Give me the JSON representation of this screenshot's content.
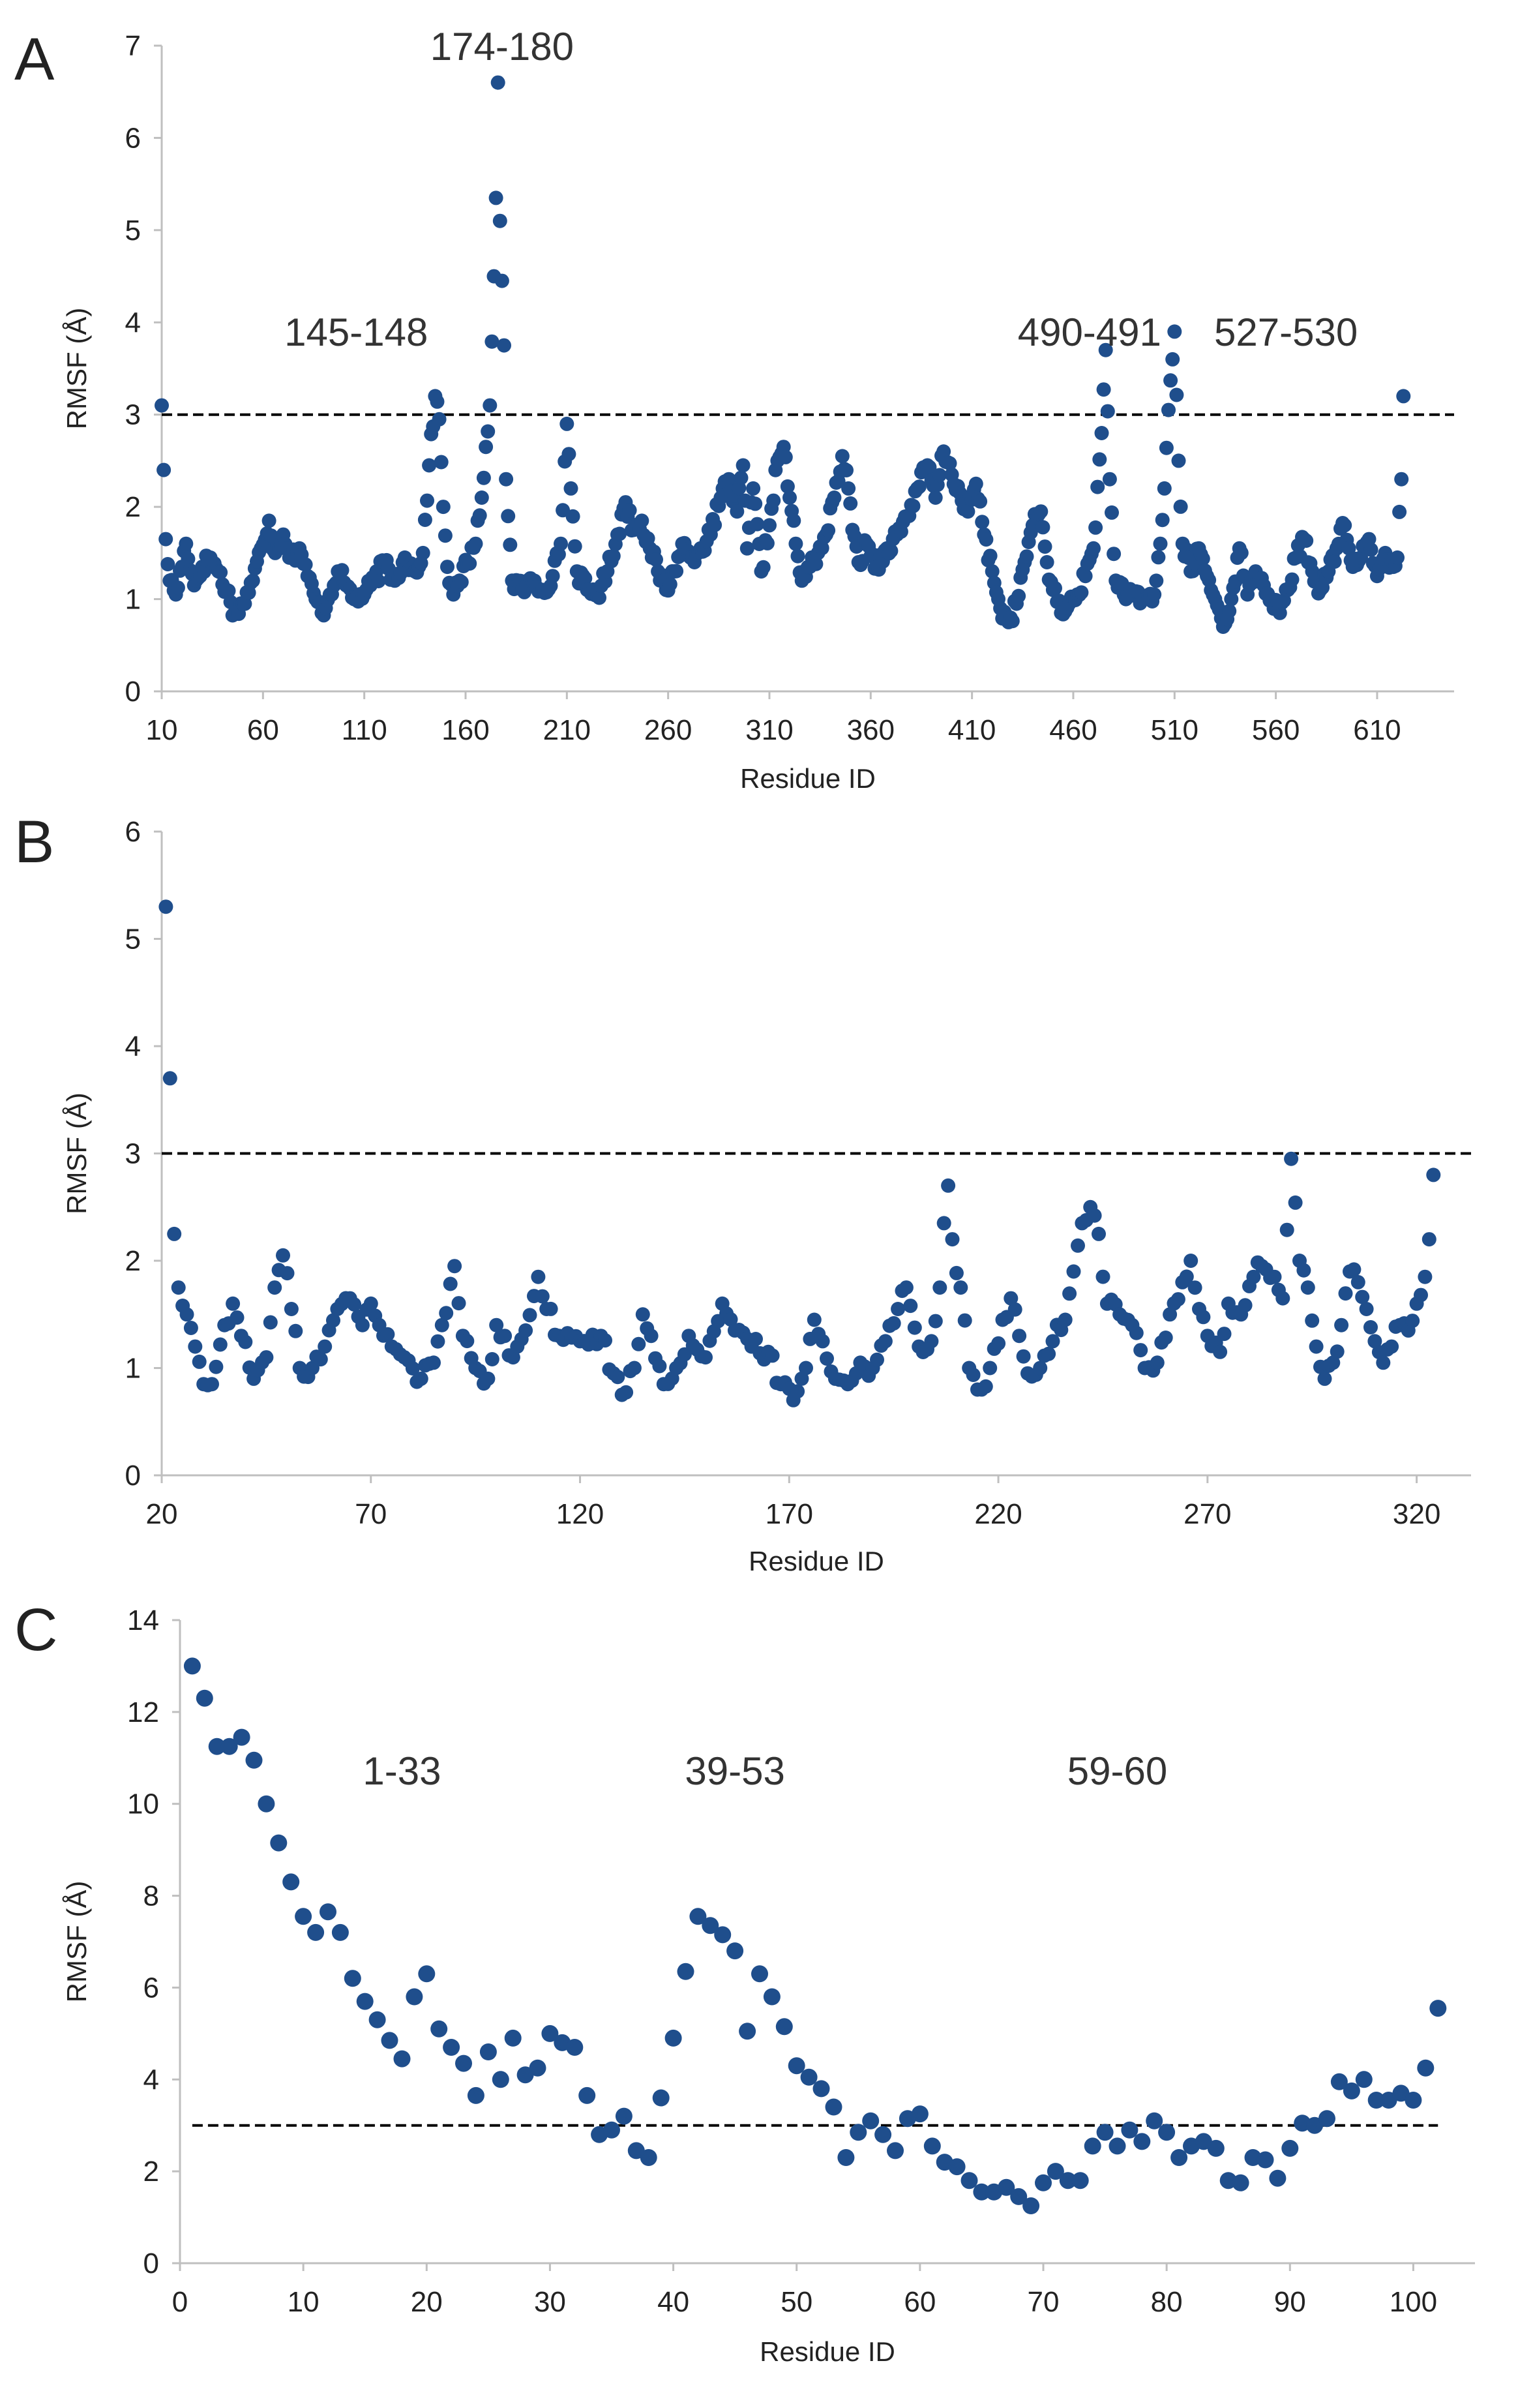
{
  "colors": {
    "point": "#1f4e8c",
    "threshold": "#000000",
    "axis": "#bfbfbf",
    "text": "#222222"
  },
  "chart_data": [
    {
      "type": "scatter",
      "panel_label": "A",
      "xlabel": "Residue ID",
      "ylabel": "RMSF (Å)",
      "xlim": [
        10,
        648
      ],
      "ylim": [
        0,
        7
      ],
      "xticks": [
        10,
        60,
        110,
        160,
        210,
        260,
        310,
        360,
        410,
        460,
        510,
        560,
        610
      ],
      "yticks": [
        0,
        1,
        2,
        3,
        4,
        5,
        6,
        7
      ],
      "threshold": 3,
      "annotations": [
        {
          "text": "174-180",
          "x": 178,
          "y": 7.0
        },
        {
          "text": "145-148",
          "x": 106,
          "y": 3.9
        },
        {
          "text": "490-491",
          "x": 468,
          "y": 3.9
        },
        {
          "text": "527-530",
          "x": 565,
          "y": 3.9
        }
      ],
      "anchors": [
        [
          10,
          3.1
        ],
        [
          11,
          2.4
        ],
        [
          12,
          1.65
        ],
        [
          14,
          1.2
        ],
        [
          17,
          1.05
        ],
        [
          22,
          1.6
        ],
        [
          26,
          1.15
        ],
        [
          30,
          1.35
        ],
        [
          34,
          1.45
        ],
        [
          38,
          1.3
        ],
        [
          42,
          1.1
        ],
        [
          46,
          0.85
        ],
        [
          50,
          0.95
        ],
        [
          55,
          1.2
        ],
        [
          59,
          1.55
        ],
        [
          63,
          1.85
        ],
        [
          66,
          1.5
        ],
        [
          70,
          1.7
        ],
        [
          74,
          1.45
        ],
        [
          78,
          1.55
        ],
        [
          82,
          1.25
        ],
        [
          86,
          1.0
        ],
        [
          89,
          0.85
        ],
        [
          93,
          1.05
        ],
        [
          97,
          1.3
        ],
        [
          101,
          1.15
        ],
        [
          105,
          1.0
        ],
        [
          110,
          1.05
        ],
        [
          115,
          1.2
        ],
        [
          120,
          1.4
        ],
        [
          125,
          1.2
        ],
        [
          130,
          1.45
        ],
        [
          135,
          1.3
        ],
        [
          139,
          1.5
        ],
        [
          142,
          2.45
        ],
        [
          145,
          3.2
        ],
        [
          147,
          2.95
        ],
        [
          149,
          2.0
        ],
        [
          151,
          1.35
        ],
        [
          154,
          1.05
        ],
        [
          157,
          1.2
        ],
        [
          161,
          1.4
        ],
        [
          165,
          1.6
        ],
        [
          168,
          2.1
        ],
        [
          170,
          2.65
        ],
        [
          172,
          3.1
        ],
        [
          174,
          4.5
        ],
        [
          175,
          5.35
        ],
        [
          176,
          6.6
        ],
        [
          177,
          5.1
        ],
        [
          178,
          4.45
        ],
        [
          179,
          3.75
        ],
        [
          180,
          2.3
        ],
        [
          181,
          1.9
        ],
        [
          183,
          1.2
        ],
        [
          188,
          1.1
        ],
        [
          193,
          1.2
        ],
        [
          198,
          1.1
        ],
        [
          203,
          1.25
        ],
        [
          207,
          1.6
        ],
        [
          210,
          2.9
        ],
        [
          212,
          2.2
        ],
        [
          215,
          1.3
        ],
        [
          220,
          1.1
        ],
        [
          225,
          1.05
        ],
        [
          230,
          1.3
        ],
        [
          235,
          1.7
        ],
        [
          239,
          2.05
        ],
        [
          243,
          1.75
        ],
        [
          247,
          1.85
        ],
        [
          251,
          1.55
        ],
        [
          255,
          1.3
        ],
        [
          259,
          1.1
        ],
        [
          263,
          1.3
        ],
        [
          267,
          1.6
        ],
        [
          271,
          1.45
        ],
        [
          276,
          1.55
        ],
        [
          281,
          1.7
        ],
        [
          286,
          2.1
        ],
        [
          290,
          2.3
        ],
        [
          294,
          1.95
        ],
        [
          297,
          2.45
        ],
        [
          299,
          1.55
        ],
        [
          302,
          2.2
        ],
        [
          306,
          1.3
        ],
        [
          310,
          1.8
        ],
        [
          314,
          2.5
        ],
        [
          317,
          2.65
        ],
        [
          320,
          2.1
        ],
        [
          323,
          1.6
        ],
        [
          326,
          1.2
        ],
        [
          330,
          1.35
        ],
        [
          334,
          1.5
        ],
        [
          338,
          1.7
        ],
        [
          342,
          2.1
        ],
        [
          346,
          2.55
        ],
        [
          349,
          2.2
        ],
        [
          351,
          1.75
        ],
        [
          354,
          1.4
        ],
        [
          358,
          1.6
        ],
        [
          363,
          1.35
        ],
        [
          368,
          1.55
        ],
        [
          373,
          1.7
        ],
        [
          378,
          1.9
        ],
        [
          383,
          2.2
        ],
        [
          388,
          2.45
        ],
        [
          392,
          2.1
        ],
        [
          396,
          2.6
        ],
        [
          400,
          2.35
        ],
        [
          404,
          2.15
        ],
        [
          408,
          1.95
        ],
        [
          412,
          2.25
        ],
        [
          416,
          1.7
        ],
        [
          420,
          1.3
        ],
        [
          424,
          0.9
        ],
        [
          428,
          0.75
        ],
        [
          432,
          0.95
        ],
        [
          436,
          1.4
        ],
        [
          440,
          1.8
        ],
        [
          444,
          1.95
        ],
        [
          447,
          1.4
        ],
        [
          450,
          1.1
        ],
        [
          454,
          0.85
        ],
        [
          458,
          0.95
        ],
        [
          462,
          1.05
        ],
        [
          466,
          1.25
        ],
        [
          470,
          1.55
        ],
        [
          474,
          2.8
        ],
        [
          476,
          3.7
        ],
        [
          478,
          2.3
        ],
        [
          481,
          1.2
        ],
        [
          486,
          1.0
        ],
        [
          490,
          1.05
        ],
        [
          495,
          1.0
        ],
        [
          500,
          1.05
        ],
        [
          503,
          1.6
        ],
        [
          505,
          2.2
        ],
        [
          507,
          3.05
        ],
        [
          509,
          3.6
        ],
        [
          510,
          3.9
        ],
        [
          512,
          2.5
        ],
        [
          514,
          1.6
        ],
        [
          518,
          1.3
        ],
        [
          522,
          1.55
        ],
        [
          526,
          1.25
        ],
        [
          530,
          1.0
        ],
        [
          534,
          0.7
        ],
        [
          538,
          1.0
        ],
        [
          542,
          1.55
        ],
        [
          546,
          1.05
        ],
        [
          550,
          1.3
        ],
        [
          554,
          1.15
        ],
        [
          558,
          1.0
        ],
        [
          562,
          0.85
        ],
        [
          566,
          1.1
        ],
        [
          570,
          1.45
        ],
        [
          574,
          1.65
        ],
        [
          578,
          1.3
        ],
        [
          582,
          1.1
        ],
        [
          586,
          1.3
        ],
        [
          590,
          1.55
        ],
        [
          594,
          1.8
        ],
        [
          598,
          1.35
        ],
        [
          602,
          1.45
        ],
        [
          606,
          1.65
        ],
        [
          610,
          1.25
        ],
        [
          614,
          1.5
        ],
        [
          618,
          1.35
        ],
        [
          620,
          1.45
        ],
        [
          622,
          2.3
        ],
        [
          623,
          3.2
        ]
      ]
    },
    {
      "type": "scatter",
      "panel_label": "B",
      "xlabel": "Residue ID",
      "ylabel": "RMSF (Å)",
      "xlim": [
        20,
        333
      ],
      "ylim": [
        0,
        6
      ],
      "xticks": [
        20,
        70,
        120,
        170,
        220,
        270,
        320
      ],
      "yticks": [
        0,
        1,
        2,
        3,
        4,
        5,
        6
      ],
      "threshold": 3,
      "anchors": [
        [
          21,
          5.3
        ],
        [
          22,
          3.7
        ],
        [
          23,
          2.25
        ],
        [
          24,
          1.75
        ],
        [
          26,
          1.5
        ],
        [
          28,
          1.2
        ],
        [
          30,
          0.85
        ],
        [
          32,
          0.85
        ],
        [
          35,
          1.4
        ],
        [
          37,
          1.6
        ],
        [
          39,
          1.3
        ],
        [
          42,
          0.9
        ],
        [
          45,
          1.1
        ],
        [
          47,
          1.75
        ],
        [
          49,
          2.05
        ],
        [
          51,
          1.55
        ],
        [
          53,
          1.0
        ],
        [
          56,
          1.0
        ],
        [
          59,
          1.2
        ],
        [
          62,
          1.55
        ],
        [
          65,
          1.65
        ],
        [
          68,
          1.4
        ],
        [
          70,
          1.6
        ],
        [
          72,
          1.4
        ],
        [
          75,
          1.2
        ],
        [
          78,
          1.1
        ],
        [
          82,
          0.9
        ],
        [
          85,
          1.05
        ],
        [
          87,
          1.4
        ],
        [
          90,
          1.95
        ],
        [
          92,
          1.3
        ],
        [
          95,
          1.0
        ],
        [
          98,
          0.9
        ],
        [
          100,
          1.4
        ],
        [
          102,
          1.3
        ],
        [
          104,
          1.1
        ],
        [
          107,
          1.35
        ],
        [
          110,
          1.85
        ],
        [
          112,
          1.55
        ],
        [
          115,
          1.3
        ],
        [
          120,
          1.25
        ],
        [
          125,
          1.3
        ],
        [
          128,
          0.95
        ],
        [
          130,
          0.75
        ],
        [
          133,
          1.0
        ],
        [
          135,
          1.5
        ],
        [
          137,
          1.3
        ],
        [
          140,
          0.85
        ],
        [
          143,
          1.0
        ],
        [
          146,
          1.3
        ],
        [
          150,
          1.1
        ],
        [
          154,
          1.6
        ],
        [
          157,
          1.35
        ],
        [
          161,
          1.2
        ],
        [
          165,
          1.15
        ],
        [
          168,
          0.85
        ],
        [
          171,
          0.7
        ],
        [
          174,
          1.0
        ],
        [
          176,
          1.45
        ],
        [
          178,
          1.25
        ],
        [
          181,
          0.9
        ],
        [
          184,
          0.85
        ],
        [
          187,
          1.05
        ],
        [
          190,
          1.0
        ],
        [
          193,
          1.25
        ],
        [
          196,
          1.55
        ],
        [
          198,
          1.75
        ],
        [
          201,
          1.2
        ],
        [
          204,
          1.25
        ],
        [
          206,
          1.75
        ],
        [
          207,
          2.35
        ],
        [
          208,
          2.7
        ],
        [
          209,
          2.2
        ],
        [
          211,
          1.75
        ],
        [
          213,
          1.0
        ],
        [
          216,
          0.8
        ],
        [
          218,
          1.0
        ],
        [
          221,
          1.45
        ],
        [
          223,
          1.65
        ],
        [
          225,
          1.3
        ],
        [
          227,
          0.95
        ],
        [
          230,
          1.0
        ],
        [
          233,
          1.25
        ],
        [
          236,
          1.45
        ],
        [
          238,
          1.9
        ],
        [
          240,
          2.35
        ],
        [
          242,
          2.5
        ],
        [
          244,
          2.25
        ],
        [
          246,
          1.6
        ],
        [
          249,
          1.5
        ],
        [
          252,
          1.4
        ],
        [
          255,
          1.0
        ],
        [
          258,
          1.05
        ],
        [
          261,
          1.5
        ],
        [
          264,
          1.8
        ],
        [
          266,
          2.0
        ],
        [
          268,
          1.55
        ],
        [
          270,
          1.3
        ],
        [
          273,
          1.15
        ],
        [
          275,
          1.6
        ],
        [
          278,
          1.5
        ],
        [
          281,
          1.85
        ],
        [
          283,
          1.95
        ],
        [
          286,
          1.85
        ],
        [
          288,
          1.65
        ],
        [
          290,
          2.95
        ],
        [
          292,
          2.0
        ],
        [
          294,
          1.75
        ],
        [
          296,
          1.2
        ],
        [
          298,
          0.9
        ],
        [
          300,
          1.05
        ],
        [
          302,
          1.4
        ],
        [
          304,
          1.9
        ],
        [
          306,
          1.8
        ],
        [
          308,
          1.55
        ],
        [
          310,
          1.25
        ],
        [
          312,
          1.05
        ],
        [
          314,
          1.2
        ],
        [
          316,
          1.4
        ],
        [
          318,
          1.35
        ],
        [
          320,
          1.6
        ],
        [
          322,
          1.85
        ],
        [
          323,
          2.2
        ],
        [
          324,
          2.8
        ]
      ]
    },
    {
      "type": "scatter",
      "panel_label": "C",
      "xlabel": "Residue ID",
      "ylabel": "RMSF (Å)",
      "xlim": [
        0,
        105
      ],
      "ylim": [
        0,
        14
      ],
      "xticks": [
        0,
        10,
        20,
        30,
        40,
        50,
        60,
        70,
        80,
        90,
        100
      ],
      "yticks": [
        0,
        2,
        4,
        6,
        8,
        10,
        12,
        14
      ],
      "threshold": 3,
      "annotations": [
        {
          "text": "1-33",
          "x": 18,
          "y": 10.8
        },
        {
          "text": "39-53",
          "x": 45,
          "y": 10.8
        },
        {
          "text": "59-60",
          "x": 76,
          "y": 10.8
        }
      ],
      "x": [
        1,
        2,
        3,
        4,
        5,
        6,
        7,
        8,
        9,
        10,
        11,
        12,
        13,
        14,
        15,
        16,
        17,
        18,
        19,
        20,
        21,
        22,
        23,
        24,
        25,
        26,
        27,
        28,
        29,
        30,
        31,
        32,
        33,
        34,
        35,
        36,
        37,
        38,
        39,
        40,
        41,
        42,
        43,
        44,
        45,
        46,
        47,
        48,
        49,
        50,
        51,
        52,
        53,
        54,
        55,
        56,
        57,
        58,
        59,
        60,
        61,
        62,
        63,
        64,
        65,
        66,
        67,
        68,
        69,
        70,
        71,
        72,
        73,
        74,
        75,
        76,
        77,
        78,
        79,
        80,
        81,
        82,
        83,
        84,
        85,
        86,
        87,
        88,
        89,
        90,
        91,
        92,
        93,
        94,
        95,
        96,
        97,
        98,
        99,
        100,
        101,
        102
      ],
      "y": [
        13.0,
        12.3,
        11.25,
        11.25,
        11.45,
        10.95,
        10.0,
        9.15,
        8.3,
        7.55,
        7.2,
        7.65,
        7.2,
        6.2,
        5.7,
        5.3,
        4.85,
        4.45,
        5.8,
        6.3,
        5.1,
        4.7,
        4.35,
        3.65,
        4.6,
        4.0,
        4.9,
        4.1,
        4.25,
        5.0,
        4.8,
        4.7,
        3.65,
        2.8,
        2.9,
        3.2,
        2.45,
        2.3,
        3.6,
        4.9,
        6.35,
        7.55,
        7.35,
        7.15,
        6.8,
        5.05,
        6.3,
        5.8,
        5.15,
        4.3,
        4.05,
        3.8,
        3.4,
        2.3,
        2.85,
        3.1,
        2.8,
        2.45,
        3.15,
        3.25,
        2.55,
        2.2,
        2.1,
        1.8,
        1.55,
        1.55,
        1.65,
        1.45,
        1.25,
        1.75,
        2.0,
        1.8,
        1.8,
        2.55,
        2.85,
        2.55,
        2.9,
        2.65,
        3.1,
        2.85,
        2.3,
        2.55,
        2.65,
        2.5,
        1.8,
        1.75,
        2.3,
        2.25,
        1.85,
        2.5,
        3.05,
        3.0,
        3.15,
        3.95,
        3.75,
        4.0,
        3.55,
        3.55,
        3.7,
        3.55,
        4.25,
        5.55
      ]
    }
  ]
}
